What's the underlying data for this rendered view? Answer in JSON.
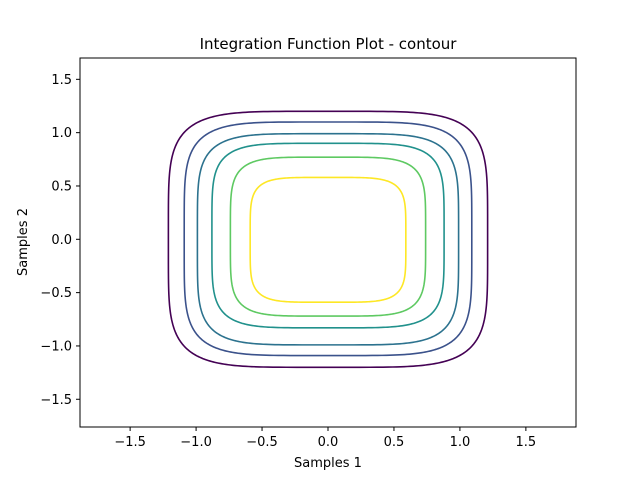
{
  "chart_data": {
    "type": "contour",
    "title": "Integration Function Plot - contour",
    "xlabel": "Samples 1",
    "ylabel": "Samples 2",
    "xlim": [
      -1.88,
      1.88
    ],
    "ylim": [
      -1.76,
      1.7
    ],
    "xticks": [
      -1.5,
      -1.0,
      -0.5,
      0.0,
      0.5,
      1.0,
      1.5
    ],
    "xtick_labels": [
      "−1.5",
      "−1.0",
      "−0.5",
      "0.0",
      "0.5",
      "1.0",
      "1.5"
    ],
    "yticks": [
      -1.5,
      -1.0,
      -0.5,
      0.0,
      0.5,
      1.0,
      1.5
    ],
    "ytick_labels": [
      "−1.5",
      "−1.0",
      "−0.5",
      "0.0",
      "0.5",
      "1.0",
      "1.5"
    ],
    "grid": false,
    "colormap": "viridis",
    "levels": [
      {
        "half_width": 1.21,
        "y_top": 1.2,
        "y_bottom": -1.2,
        "color": "#440154"
      },
      {
        "half_width": 1.09,
        "y_top": 1.1,
        "y_bottom": -1.09,
        "color": "#3b528b"
      },
      {
        "half_width": 0.99,
        "y_top": 0.99,
        "y_bottom": -0.99,
        "color": "#2c728e"
      },
      {
        "half_width": 0.88,
        "y_top": 0.9,
        "y_bottom": -0.83,
        "color": "#21918c"
      },
      {
        "half_width": 0.74,
        "y_top": 0.77,
        "y_bottom": -0.72,
        "color": "#5ec962"
      },
      {
        "half_width": 0.59,
        "y_top": 0.58,
        "y_bottom": -0.59,
        "color": "#fde725"
      }
    ]
  }
}
